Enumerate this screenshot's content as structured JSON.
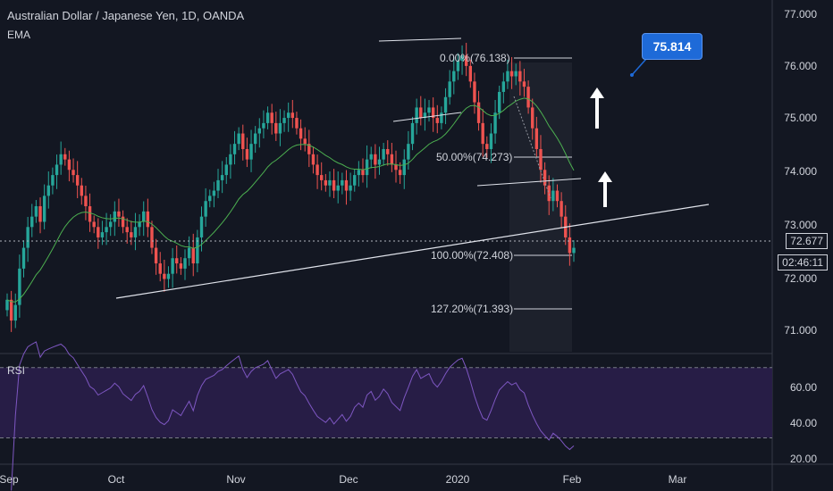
{
  "header": {
    "title": "Australian Dollar / Japanese Yen, 1D, OANDA",
    "indicator": "EMA"
  },
  "rsi": {
    "label": "RSI"
  },
  "price_axis": {
    "ticks": [
      "77.000",
      "76.000",
      "75.000",
      "74.000",
      "73.000",
      "72.000",
      "71.000"
    ],
    "current_price": "72.677",
    "countdown": "02:46:11"
  },
  "rsi_axis": {
    "ticks": [
      "60.00",
      "40.00",
      "20.00"
    ]
  },
  "time_axis": {
    "labels": [
      "Sep",
      "Oct",
      "Nov",
      "Dec",
      "2020",
      "Feb",
      "Mar"
    ]
  },
  "callout": {
    "text": "75.814"
  },
  "fib_levels": [
    {
      "text": "0.00%(76.138)"
    },
    {
      "text": "50.00%(74.273)"
    },
    {
      "text": "100.00%(72.408)"
    },
    {
      "text": "127.20%(71.393)"
    }
  ],
  "colors": {
    "background": "#131722",
    "up": "#26a69a",
    "down": "#ef5350",
    "ema": "#4caf50",
    "rsi_line": "#7e57c2",
    "rsi_band": "#2a1e4a",
    "accent": "#1e6ad8"
  },
  "chart_data": {
    "type": "candlestick",
    "symbol": "AUDJPY",
    "timeframe": "1D",
    "ylim": [
      70.6,
      77.3
    ],
    "closes": [
      71.6,
      71.2,
      71.5,
      72.2,
      72.6,
      73.0,
      73.2,
      73.4,
      73.1,
      73.6,
      73.8,
      74.0,
      74.2,
      74.4,
      74.3,
      74.1,
      74.0,
      73.8,
      73.6,
      73.4,
      73.1,
      73.0,
      72.8,
      72.9,
      73.0,
      73.1,
      73.3,
      73.2,
      73.0,
      72.9,
      72.8,
      73.0,
      73.1,
      73.3,
      73.0,
      72.6,
      72.3,
      72.1,
      72.0,
      72.1,
      72.4,
      72.3,
      72.2,
      72.4,
      72.6,
      72.3,
      72.8,
      73.2,
      73.5,
      73.6,
      73.7,
      73.9,
      74.0,
      74.2,
      74.4,
      74.6,
      74.8,
      74.5,
      74.3,
      74.6,
      74.8,
      74.9,
      75.0,
      75.2,
      75.0,
      74.8,
      75.0,
      75.1,
      75.2,
      75.1,
      74.9,
      74.7,
      74.6,
      74.4,
      74.2,
      74.0,
      73.9,
      73.8,
      73.9,
      73.7,
      73.8,
      73.9,
      73.7,
      73.8,
      74.0,
      74.1,
      74.0,
      74.3,
      74.4,
      74.2,
      74.3,
      74.5,
      74.4,
      74.2,
      74.1,
      74.0,
      74.3,
      74.6,
      75.0,
      75.3,
      75.1,
      75.2,
      75.3,
      75.1,
      75.0,
      75.2,
      75.5,
      75.8,
      76.0,
      76.2,
      76.3,
      76.1,
      75.8,
      75.4,
      75.0,
      74.6,
      74.5,
      74.8,
      75.2,
      75.6,
      75.8,
      76.0,
      75.9,
      76.0,
      75.8,
      75.7,
      75.3,
      74.9,
      74.5,
      74.1,
      73.8,
      73.5,
      73.7,
      73.5,
      73.2,
      72.8,
      72.5,
      72.6
    ]
  }
}
